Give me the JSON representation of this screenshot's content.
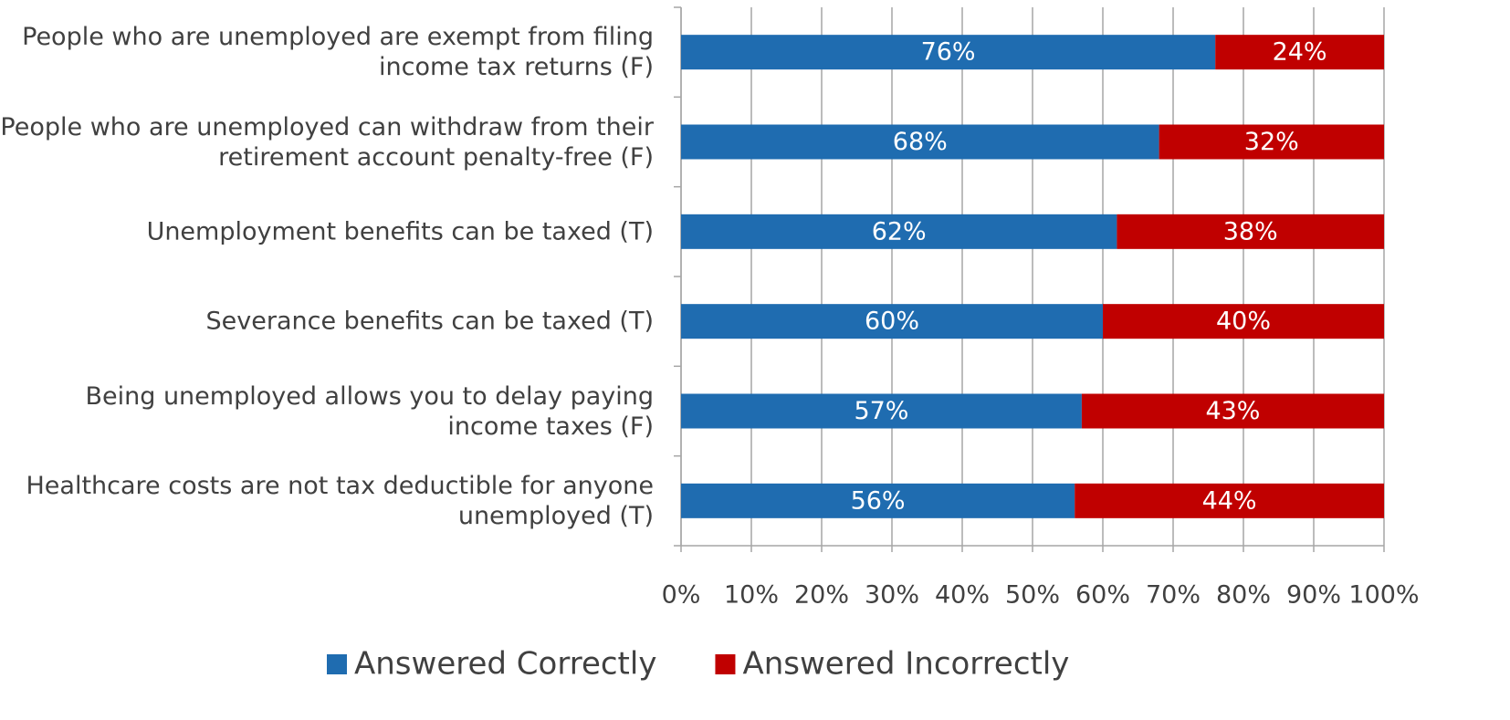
{
  "chart_data": {
    "type": "stacked_barh",
    "categories": [
      "People who are unemployed are exempt from filing income tax returns (F)",
      "People who are unemployed can withdraw from their retirement account penalty-free (F)",
      "Unemployment benefits can be taxed (T)",
      "Severance benefits can be taxed (T)",
      "Being unemployed allows you to delay paying income taxes (F)",
      "Healthcare costs are not tax deductible for anyone unemployed (T)"
    ],
    "series": [
      {
        "name": "Answered Correctly",
        "color": "#1f6cb0",
        "values": [
          76,
          68,
          62,
          60,
          57,
          56
        ],
        "value_labels": [
          "76%",
          "68%",
          "62%",
          "60%",
          "57%",
          "56%"
        ]
      },
      {
        "name": "Answered Incorrectly",
        "color": "#c00000",
        "values": [
          24,
          32,
          38,
          40,
          43,
          44
        ],
        "value_labels": [
          "24%",
          "32%",
          "38%",
          "40%",
          "43%",
          "44%"
        ]
      }
    ],
    "xlim": [
      0,
      100
    ],
    "xticks": [
      {
        "value": 0,
        "label": "0%"
      },
      {
        "value": 10,
        "label": "10%"
      },
      {
        "value": 20,
        "label": "20%"
      },
      {
        "value": 30,
        "label": "30%"
      },
      {
        "value": 40,
        "label": "40%"
      },
      {
        "value": 50,
        "label": "50%"
      },
      {
        "value": 60,
        "label": "60%"
      },
      {
        "value": 70,
        "label": "70%"
      },
      {
        "value": 80,
        "label": "80%"
      },
      {
        "value": 90,
        "label": "90%"
      },
      {
        "value": 100,
        "label": "100%"
      }
    ],
    "grid": true,
    "legend": "bottom"
  }
}
